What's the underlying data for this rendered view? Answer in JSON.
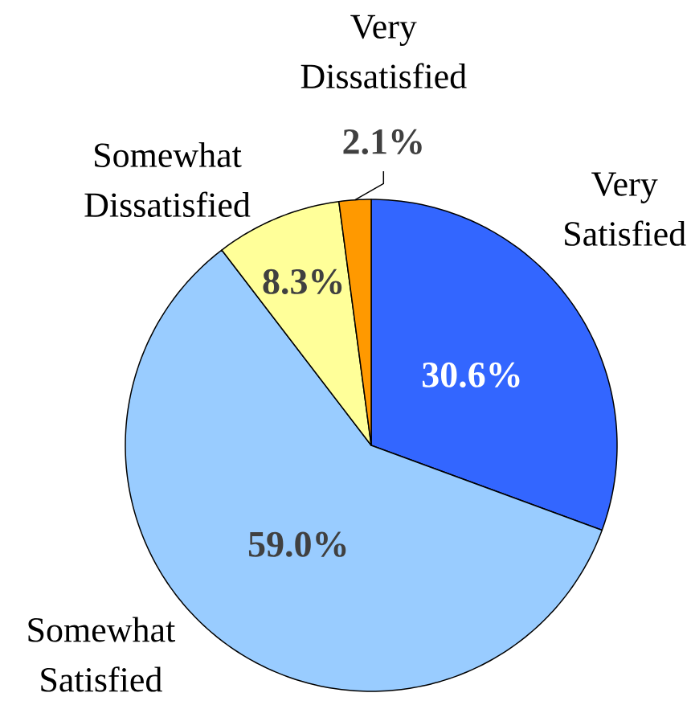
{
  "chart_data": {
    "type": "pie",
    "categories": [
      "Very Satisfied",
      "Somewhat Satisfied",
      "Somewhat Dissatisfied",
      "Very Dissatisfied"
    ],
    "values": [
      30.6,
      59.0,
      8.3,
      2.1
    ],
    "colors": [
      "#3366ff",
      "#99ccff",
      "#ffff99",
      "#ff9900"
    ],
    "value_labels": [
      "30.6%",
      "59.0%",
      "8.3%",
      "2.1%"
    ]
  }
}
